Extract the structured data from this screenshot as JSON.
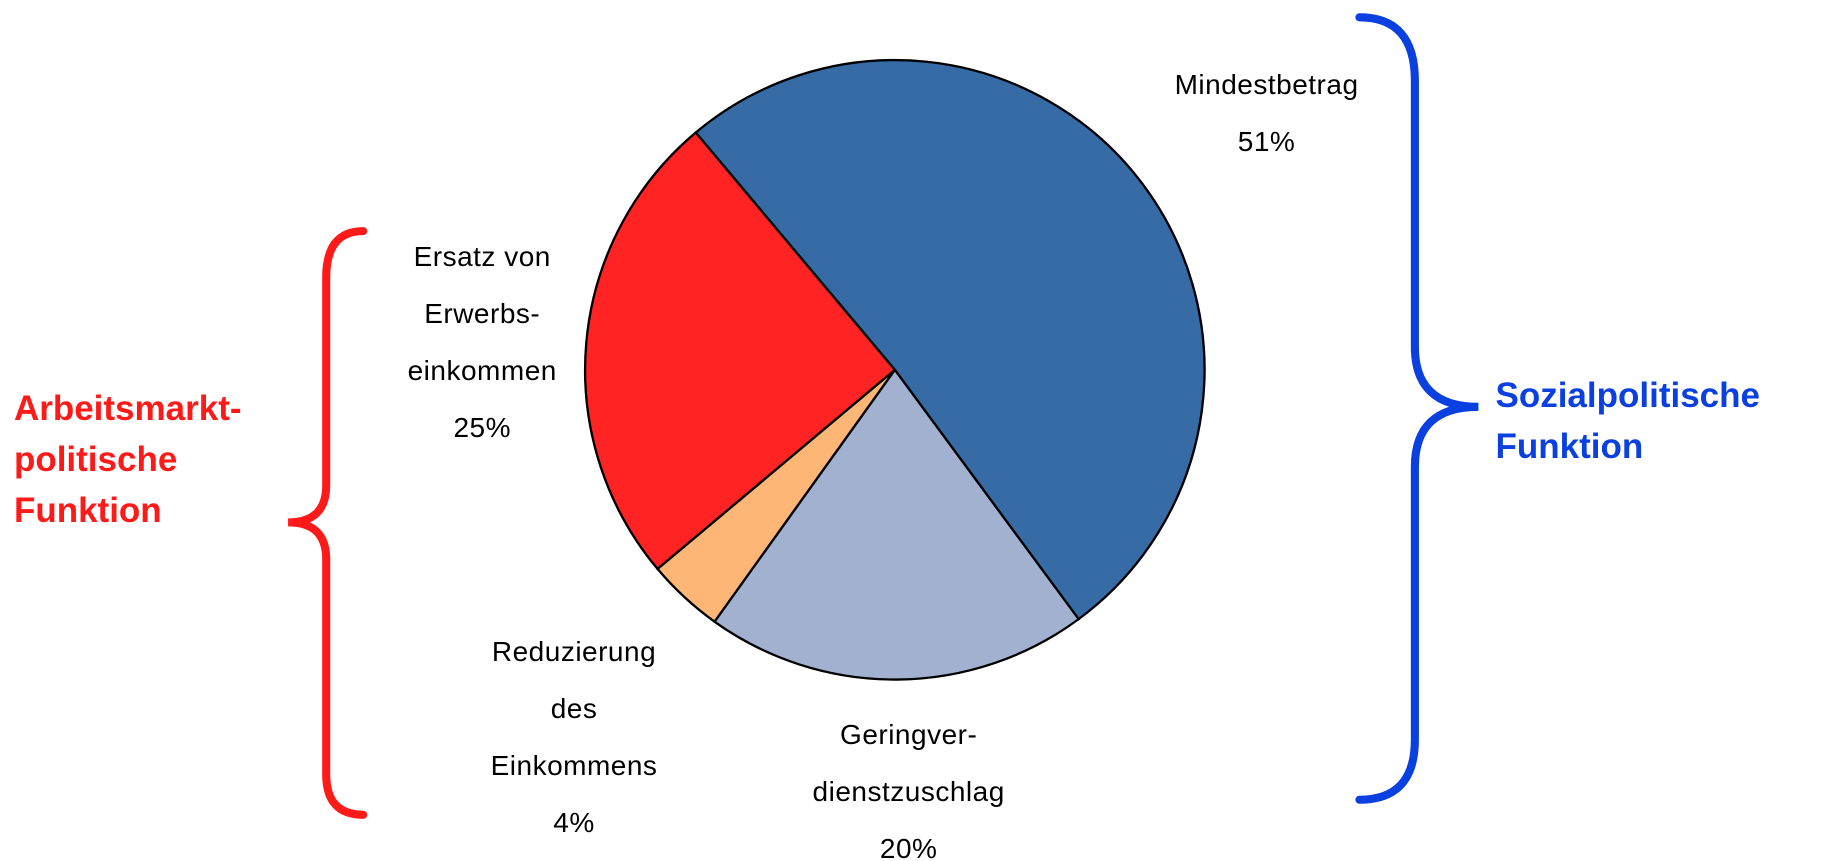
{
  "chart_data": {
    "type": "pie",
    "categories": [
      "Mindestbetrag",
      "Geringver-\ndienstzuschlag",
      "Reduzierung\ndes\nEinkommens",
      "Ersatz von\nErwerbs-\neinkommen"
    ],
    "values": [
      51,
      20,
      4,
      25
    ],
    "value_labels": [
      "51%",
      "20%",
      "4%",
      "25%"
    ],
    "colors": [
      "#376ba5",
      "#a1b1cf",
      "#fdb675",
      "#ff2323"
    ],
    "annotations": [
      {
        "text": "Arbeitsmarkt-\npolitische\nFunktion",
        "color": "#ff1a1a"
      },
      {
        "text": "Sozialpolitische\nFunktion",
        "color": "#0a3fe0"
      }
    ]
  }
}
